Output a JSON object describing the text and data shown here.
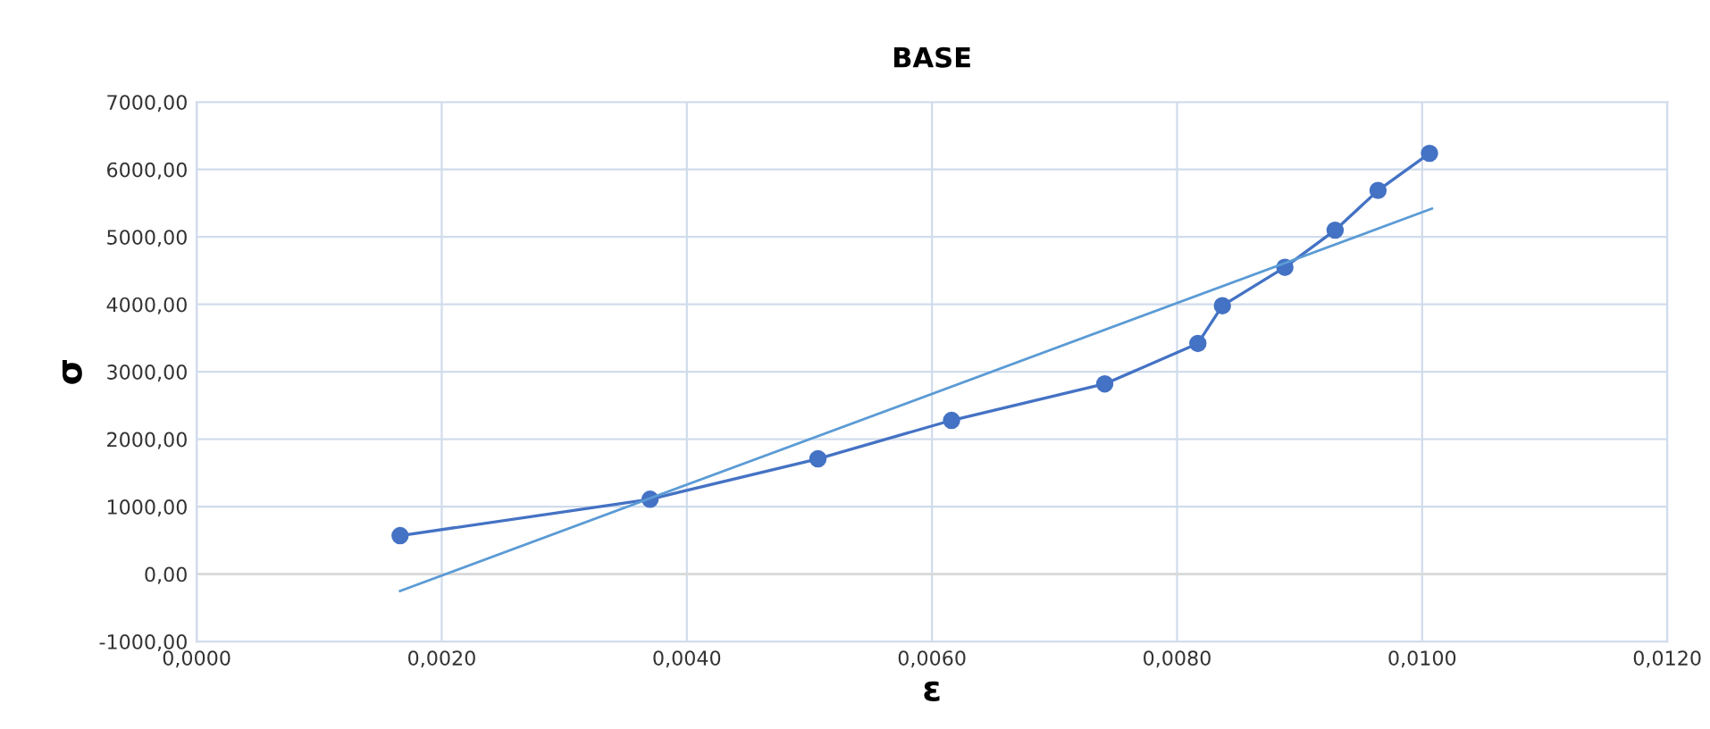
{
  "chart_data": {
    "type": "line",
    "title": "BASE",
    "xlabel": "ε",
    "ylabel": "σ",
    "xlim": [
      0,
      0.012
    ],
    "ylim": [
      -1000,
      7000
    ],
    "xticks": [
      {
        "value": 0,
        "label": "0,0000"
      },
      {
        "value": 0.002,
        "label": "0,0020"
      },
      {
        "value": 0.004,
        "label": "0,0040"
      },
      {
        "value": 0.006,
        "label": "0,0060"
      },
      {
        "value": 0.008,
        "label": "0,0080"
      },
      {
        "value": 0.01,
        "label": "0,0100"
      },
      {
        "value": 0.012,
        "label": "0,0120"
      }
    ],
    "yticks": [
      {
        "value": -1000,
        "label": "-1000,00"
      },
      {
        "value": 0,
        "label": "0,00"
      },
      {
        "value": 1000,
        "label": "1000,00"
      },
      {
        "value": 2000,
        "label": "2000,00"
      },
      {
        "value": 3000,
        "label": "3000,00"
      },
      {
        "value": 4000,
        "label": "4000,00"
      },
      {
        "value": 5000,
        "label": "5000,00"
      },
      {
        "value": 6000,
        "label": "6000,00"
      },
      {
        "value": 7000,
        "label": "7000,00"
      }
    ],
    "grid": true,
    "legend": false,
    "series": [
      {
        "marker": "circle",
        "color": "#4472c4",
        "x": [
          0.00166,
          0.0037,
          0.00507,
          0.00616,
          0.00741,
          0.00817,
          0.00837,
          0.00888,
          0.00929,
          0.00964,
          0.01006
        ],
        "values": [
          570,
          1110,
          1710,
          2280,
          2820,
          3420,
          3980,
          4550,
          5100,
          5690,
          6240
        ]
      },
      {
        "marker": "none",
        "color": "#5b9bd5",
        "x": [
          0.00166,
          0.01008
        ],
        "values": [
          -250,
          5420
        ]
      }
    ]
  }
}
